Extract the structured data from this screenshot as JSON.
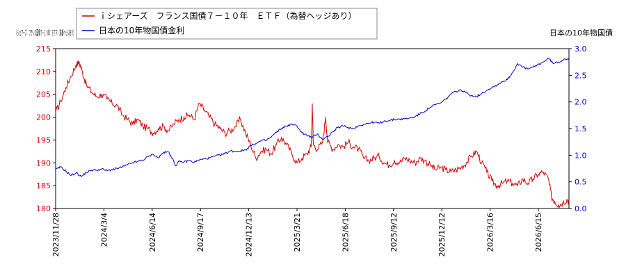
{
  "chart_data": {
    "type": "line",
    "legend": "top-left",
    "grid": false,
    "left_axis_label": "ｉシェアーズ　フランス国債７－１０年　ＥＴＦ（為替ヘッジあり）",
    "right_axis_label": "日本の10年物国債",
    "left_axis": {
      "min": 180,
      "max": 215,
      "ticks": [
        180,
        185,
        190,
        195,
        200,
        205,
        210,
        215
      ],
      "color": "#cc0000"
    },
    "right_axis": {
      "min": 0.0,
      "max": 3.0,
      "ticks": [
        "0.0",
        "0.5",
        "1.0",
        "1.5",
        "2.0",
        "2.5",
        "3.0"
      ],
      "color": "#0000cc"
    },
    "x_ticks": [
      "2023/11/28",
      "2024/3/4",
      "2024/6/14",
      "2024/9/17",
      "2024/12/13",
      "2025/3/21",
      "2025/6/18",
      "2025/9/12",
      "2025/12/12",
      "2026/3/16",
      "2026/6/15"
    ],
    "series": [
      {
        "name": "ｉシェアーズ　フランス国債７－１０年　ＥＴＦ（為替ヘッジあり）",
        "axis": "left",
        "color": "#cc0000",
        "values": [
          [
            0.0,
            201.0
          ],
          [
            0.5,
            203.5
          ],
          [
            1.0,
            206.5
          ],
          [
            1.5,
            209.0
          ],
          [
            2.0,
            211.5
          ],
          [
            2.3,
            212.0
          ],
          [
            2.6,
            210.0
          ],
          [
            3.0,
            207.0
          ],
          [
            3.5,
            205.5
          ],
          [
            4.0,
            204.5
          ],
          [
            4.5,
            205.0
          ],
          [
            5.0,
            204.0
          ],
          [
            5.5,
            203.0
          ],
          [
            6.0,
            202.5
          ],
          [
            6.5,
            200.5
          ],
          [
            7.0,
            199.5
          ],
          [
            7.5,
            198.5
          ],
          [
            8.0,
            199.5
          ],
          [
            8.5,
            198.0
          ],
          [
            9.0,
            197.5
          ],
          [
            9.5,
            196.5
          ],
          [
            10.0,
            197.5
          ],
          [
            10.5,
            198.0
          ],
          [
            11.0,
            197.0
          ],
          [
            11.5,
            198.5
          ],
          [
            12.0,
            199.5
          ],
          [
            12.5,
            200.0
          ],
          [
            13.0,
            200.5
          ],
          [
            13.5,
            199.5
          ],
          [
            14.0,
            203.0
          ],
          [
            14.5,
            201.5
          ],
          [
            15.0,
            200.0
          ],
          [
            15.5,
            198.5
          ],
          [
            16.0,
            197.5
          ],
          [
            16.5,
            196.5
          ],
          [
            17.0,
            197.0
          ],
          [
            17.5,
            198.0
          ],
          [
            18.0,
            199.5
          ],
          [
            18.5,
            196.5
          ],
          [
            19.0,
            194.0
          ],
          [
            19.5,
            191.0
          ],
          [
            20.0,
            192.5
          ],
          [
            20.5,
            193.0
          ],
          [
            21.0,
            192.0
          ],
          [
            21.5,
            194.0
          ],
          [
            22.0,
            195.5
          ],
          [
            22.5,
            194.0
          ],
          [
            23.0,
            192.0
          ],
          [
            23.5,
            190.0
          ],
          [
            24.0,
            191.0
          ],
          [
            24.5,
            192.0
          ],
          [
            24.9,
            193.5
          ],
          [
            25.0,
            203.0
          ],
          [
            25.1,
            194.0
          ],
          [
            25.5,
            193.0
          ],
          [
            26.0,
            194.5
          ],
          [
            26.3,
            200.0
          ],
          [
            26.5,
            194.5
          ],
          [
            27.0,
            193.0
          ],
          [
            27.5,
            194.0
          ],
          [
            28.0,
            193.5
          ],
          [
            28.5,
            194.5
          ],
          [
            29.0,
            193.5
          ],
          [
            29.5,
            193.0
          ],
          [
            30.0,
            191.0
          ],
          [
            30.5,
            190.5
          ],
          [
            31.0,
            191.0
          ],
          [
            31.5,
            191.5
          ],
          [
            32.0,
            190.0
          ],
          [
            32.5,
            189.5
          ],
          [
            33.0,
            190.5
          ],
          [
            33.5,
            190.0
          ],
          [
            34.0,
            191.0
          ],
          [
            34.5,
            190.5
          ],
          [
            35.0,
            190.0
          ],
          [
            35.5,
            191.0
          ],
          [
            36.0,
            190.5
          ],
          [
            36.5,
            189.5
          ],
          [
            37.0,
            188.5
          ],
          [
            37.5,
            189.0
          ],
          [
            38.0,
            188.5
          ],
          [
            38.5,
            188.0
          ],
          [
            39.0,
            188.5
          ],
          [
            39.5,
            189.0
          ],
          [
            40.0,
            190.0
          ],
          [
            40.5,
            191.5
          ],
          [
            41.0,
            192.5
          ],
          [
            41.5,
            190.0
          ],
          [
            42.0,
            188.0
          ],
          [
            42.5,
            186.0
          ],
          [
            43.0,
            185.0
          ],
          [
            43.5,
            185.5
          ],
          [
            44.0,
            186.0
          ],
          [
            44.5,
            185.5
          ],
          [
            45.0,
            185.0
          ],
          [
            45.5,
            186.5
          ],
          [
            46.0,
            185.5
          ],
          [
            46.5,
            186.5
          ],
          [
            47.0,
            187.5
          ],
          [
            47.5,
            188.0
          ],
          [
            48.0,
            186.5
          ],
          [
            48.3,
            182.5
          ],
          [
            48.6,
            181.5
          ],
          [
            49.0,
            180.8
          ],
          [
            49.4,
            181.3
          ],
          [
            49.8,
            182.0
          ],
          [
            50.0,
            181.5
          ]
        ]
      },
      {
        "name": "日本の10年物国債金利",
        "axis": "right",
        "color": "#0000cc",
        "values": [
          [
            0.0,
            0.73
          ],
          [
            0.5,
            0.78
          ],
          [
            1.0,
            0.7
          ],
          [
            1.5,
            0.62
          ],
          [
            2.0,
            0.67
          ],
          [
            2.5,
            0.6
          ],
          [
            3.0,
            0.68
          ],
          [
            3.5,
            0.72
          ],
          [
            4.0,
            0.72
          ],
          [
            4.5,
            0.74
          ],
          [
            5.0,
            0.71
          ],
          [
            5.5,
            0.73
          ],
          [
            6.0,
            0.75
          ],
          [
            6.5,
            0.78
          ],
          [
            7.0,
            0.82
          ],
          [
            7.5,
            0.86
          ],
          [
            8.0,
            0.88
          ],
          [
            8.5,
            0.91
          ],
          [
            9.0,
            0.97
          ],
          [
            9.5,
            1.02
          ],
          [
            10.0,
            0.95
          ],
          [
            10.5,
            1.05
          ],
          [
            11.0,
            1.06
          ],
          [
            11.2,
            1.0
          ],
          [
            11.7,
            0.8
          ],
          [
            12.0,
            0.88
          ],
          [
            12.5,
            0.87
          ],
          [
            13.0,
            0.9
          ],
          [
            13.5,
            0.87
          ],
          [
            14.0,
            0.91
          ],
          [
            14.5,
            0.93
          ],
          [
            15.0,
            0.95
          ],
          [
            15.5,
            0.98
          ],
          [
            16.0,
            1.0
          ],
          [
            16.5,
            1.03
          ],
          [
            17.0,
            1.08
          ],
          [
            17.5,
            1.07
          ],
          [
            18.0,
            1.08
          ],
          [
            18.5,
            1.1
          ],
          [
            19.0,
            1.18
          ],
          [
            19.5,
            1.22
          ],
          [
            20.0,
            1.27
          ],
          [
            20.5,
            1.28
          ],
          [
            21.0,
            1.34
          ],
          [
            21.5,
            1.43
          ],
          [
            22.0,
            1.5
          ],
          [
            22.5,
            1.55
          ],
          [
            23.0,
            1.58
          ],
          [
            23.5,
            1.55
          ],
          [
            24.0,
            1.42
          ],
          [
            24.5,
            1.37
          ],
          [
            25.0,
            1.33
          ],
          [
            25.5,
            1.4
          ],
          [
            26.0,
            1.3
          ],
          [
            26.5,
            1.35
          ],
          [
            27.0,
            1.44
          ],
          [
            27.5,
            1.52
          ],
          [
            28.0,
            1.55
          ],
          [
            28.5,
            1.52
          ],
          [
            29.0,
            1.5
          ],
          [
            29.5,
            1.55
          ],
          [
            30.0,
            1.58
          ],
          [
            30.5,
            1.6
          ],
          [
            31.0,
            1.62
          ],
          [
            31.5,
            1.6
          ],
          [
            32.0,
            1.64
          ],
          [
            32.5,
            1.65
          ],
          [
            33.0,
            1.67
          ],
          [
            33.5,
            1.68
          ],
          [
            34.0,
            1.68
          ],
          [
            34.5,
            1.7
          ],
          [
            35.0,
            1.72
          ],
          [
            35.5,
            1.78
          ],
          [
            36.0,
            1.83
          ],
          [
            36.5,
            1.9
          ],
          [
            37.0,
            1.95
          ],
          [
            37.5,
            1.98
          ],
          [
            38.0,
            2.05
          ],
          [
            38.5,
            2.15
          ],
          [
            39.0,
            2.2
          ],
          [
            39.5,
            2.22
          ],
          [
            40.0,
            2.17
          ],
          [
            40.5,
            2.12
          ],
          [
            41.0,
            2.1
          ],
          [
            41.5,
            2.16
          ],
          [
            42.0,
            2.22
          ],
          [
            42.5,
            2.27
          ],
          [
            43.0,
            2.32
          ],
          [
            43.5,
            2.38
          ],
          [
            44.0,
            2.42
          ],
          [
            44.5,
            2.55
          ],
          [
            45.0,
            2.72
          ],
          [
            45.5,
            2.65
          ],
          [
            46.0,
            2.62
          ],
          [
            46.5,
            2.65
          ],
          [
            47.0,
            2.7
          ],
          [
            47.5,
            2.75
          ],
          [
            48.0,
            2.82
          ],
          [
            48.5,
            2.72
          ],
          [
            49.0,
            2.75
          ],
          [
            49.5,
            2.8
          ],
          [
            50.0,
            2.82
          ]
        ]
      }
    ]
  }
}
